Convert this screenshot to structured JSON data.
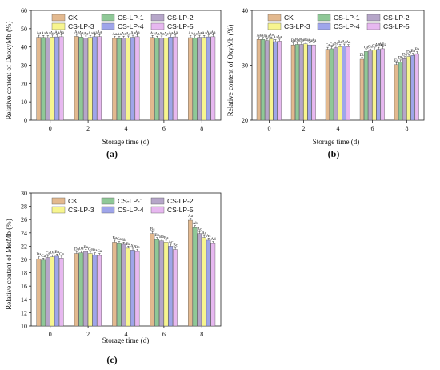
{
  "series_colors": [
    "#e3b98f",
    "#8fc897",
    "#b6a6c9",
    "#f7f58f",
    "#9fa5ea",
    "#e7b8f0"
  ],
  "chart_data": [
    {
      "type": "bar",
      "panel_label": "(a)",
      "xlabel": "Storage time (d)",
      "ylabel": "Relative content of DeoxyMb (%)",
      "categories": [
        "0",
        "2",
        "4",
        "6",
        "8"
      ],
      "ylim": [
        0,
        60
      ],
      "yticks": [
        0,
        10,
        20,
        30,
        40,
        50,
        60
      ],
      "legend_position": "top",
      "series": [
        {
          "name": "CK",
          "values": [
            45.3,
            45.8,
            44.7,
            45.2,
            45.1
          ],
          "labels": [
            "Aa",
            "Aa",
            "Aa",
            "Aa",
            "Aa"
          ]
        },
        {
          "name": "CS-LP-1",
          "values": [
            45.2,
            45.4,
            44.6,
            44.8,
            45.0
          ],
          "labels": [
            "Aa",
            "Aa",
            "Aa",
            "Aa",
            "Aa"
          ]
        },
        {
          "name": "CS-LP-2",
          "values": [
            45.1,
            44.9,
            44.8,
            44.9,
            45.3
          ],
          "labels": [
            "Aa",
            "Aa",
            "Aa",
            "Aa",
            "Aa"
          ]
        },
        {
          "name": "CS-LP-3",
          "values": [
            45.4,
            45.2,
            44.9,
            45.0,
            45.2
          ],
          "labels": [
            "Aa",
            "Aa",
            "Aa",
            "Aa",
            "Aa"
          ]
        },
        {
          "name": "CS-LP-4",
          "values": [
            45.5,
            45.6,
            45.3,
            45.4,
            45.5
          ],
          "labels": [
            "Aa",
            "Aa",
            "Aa",
            "Aa",
            "Aa"
          ]
        },
        {
          "name": "CS-LP-5",
          "values": [
            45.6,
            45.7,
            45.6,
            45.5,
            45.6
          ],
          "labels": [
            "Aa",
            "Aa",
            "Aa",
            "Aa",
            "Aa"
          ]
        }
      ]
    },
    {
      "type": "bar",
      "panel_label": "(b)",
      "xlabel": "Storage time (d)",
      "ylabel": "Relative content of OxyMb (%)",
      "categories": [
        "0",
        "2",
        "4",
        "6",
        "8"
      ],
      "ylim": [
        20,
        40
      ],
      "yticks": [
        20,
        30,
        40
      ],
      "legend_position": "top",
      "series": [
        {
          "name": "CK",
          "values": [
            34.7,
            33.7,
            32.9,
            31.1,
            30.1
          ],
          "labels": [
            "Aa",
            "Ba",
            "Ca",
            "Db",
            "Ec"
          ]
        },
        {
          "name": "CS-LP-1",
          "values": [
            34.7,
            33.8,
            33.0,
            32.5,
            30.6
          ],
          "labels": [
            "Aa",
            "Ba",
            "Ca",
            "Ca",
            "Db"
          ]
        },
        {
          "name": "CS-LP-2",
          "values": [
            34.5,
            33.8,
            33.2,
            32.6,
            31.2
          ],
          "labels": [
            "Aa",
            "Ba",
            "Ba",
            "Ca",
            "Da"
          ]
        },
        {
          "name": "CS-LP-3",
          "values": [
            34.8,
            33.9,
            33.4,
            32.8,
            31.6
          ],
          "labels": [
            "Aa",
            "Ba",
            "Ba",
            "Ca",
            "Da"
          ]
        },
        {
          "name": "CS-LP-4",
          "values": [
            34.3,
            33.7,
            33.5,
            32.9,
            31.8
          ],
          "labels": [
            "Aa",
            "Aa",
            "Aa",
            "ABa",
            "Ba"
          ]
        },
        {
          "name": "CS-LP-5",
          "values": [
            34.4,
            33.7,
            33.4,
            33.0,
            32.1
          ],
          "labels": [
            "Aa",
            "Aa",
            "Aa",
            "ABa",
            "Ba"
          ]
        }
      ]
    },
    {
      "type": "bar",
      "panel_label": "(c)",
      "xlabel": "Storage time (d)",
      "ylabel": "Relative content of MetMb (%)",
      "categories": [
        "0",
        "2",
        "4",
        "6",
        "8"
      ],
      "ylim": [
        10,
        30
      ],
      "yticks": [
        10,
        12,
        14,
        16,
        18,
        20,
        22,
        24,
        26,
        28,
        30
      ],
      "legend_position": "top",
      "series": [
        {
          "name": "CK",
          "values": [
            20.1,
            20.9,
            22.6,
            23.9,
            25.9
          ],
          "labels": [
            "Da",
            "Da",
            "Ba",
            "Ba",
            "Aa"
          ]
        },
        {
          "name": "CS-LP-1",
          "values": [
            19.9,
            21.0,
            22.4,
            23.0,
            24.8
          ],
          "labels": [
            "Ca",
            "Da",
            "Ca",
            "Bb",
            "Ab"
          ]
        },
        {
          "name": "CS-LP-2",
          "values": [
            20.3,
            21.2,
            22.3,
            22.8,
            23.9
          ],
          "labels": [
            "Ca",
            "Ba",
            "Bb",
            "Bb",
            "Ac"
          ]
        },
        {
          "name": "CS-LP-3",
          "values": [
            20.4,
            20.9,
            21.7,
            22.6,
            23.3
          ],
          "labels": [
            "Da",
            "Ca",
            "Ba",
            "Ba",
            "Ac"
          ]
        },
        {
          "name": "CS-LP-4",
          "values": [
            20.5,
            20.7,
            21.4,
            22.0,
            22.9
          ],
          "labels": [
            "Ba",
            "Ba",
            "Ab",
            "Ac",
            "Ac"
          ]
        },
        {
          "name": "CS-LP-5",
          "values": [
            20.2,
            20.6,
            21.2,
            21.5,
            22.4
          ],
          "labels": [
            "Ca",
            "Ca",
            "Bb",
            "Bc",
            "Ad"
          ]
        }
      ]
    }
  ]
}
